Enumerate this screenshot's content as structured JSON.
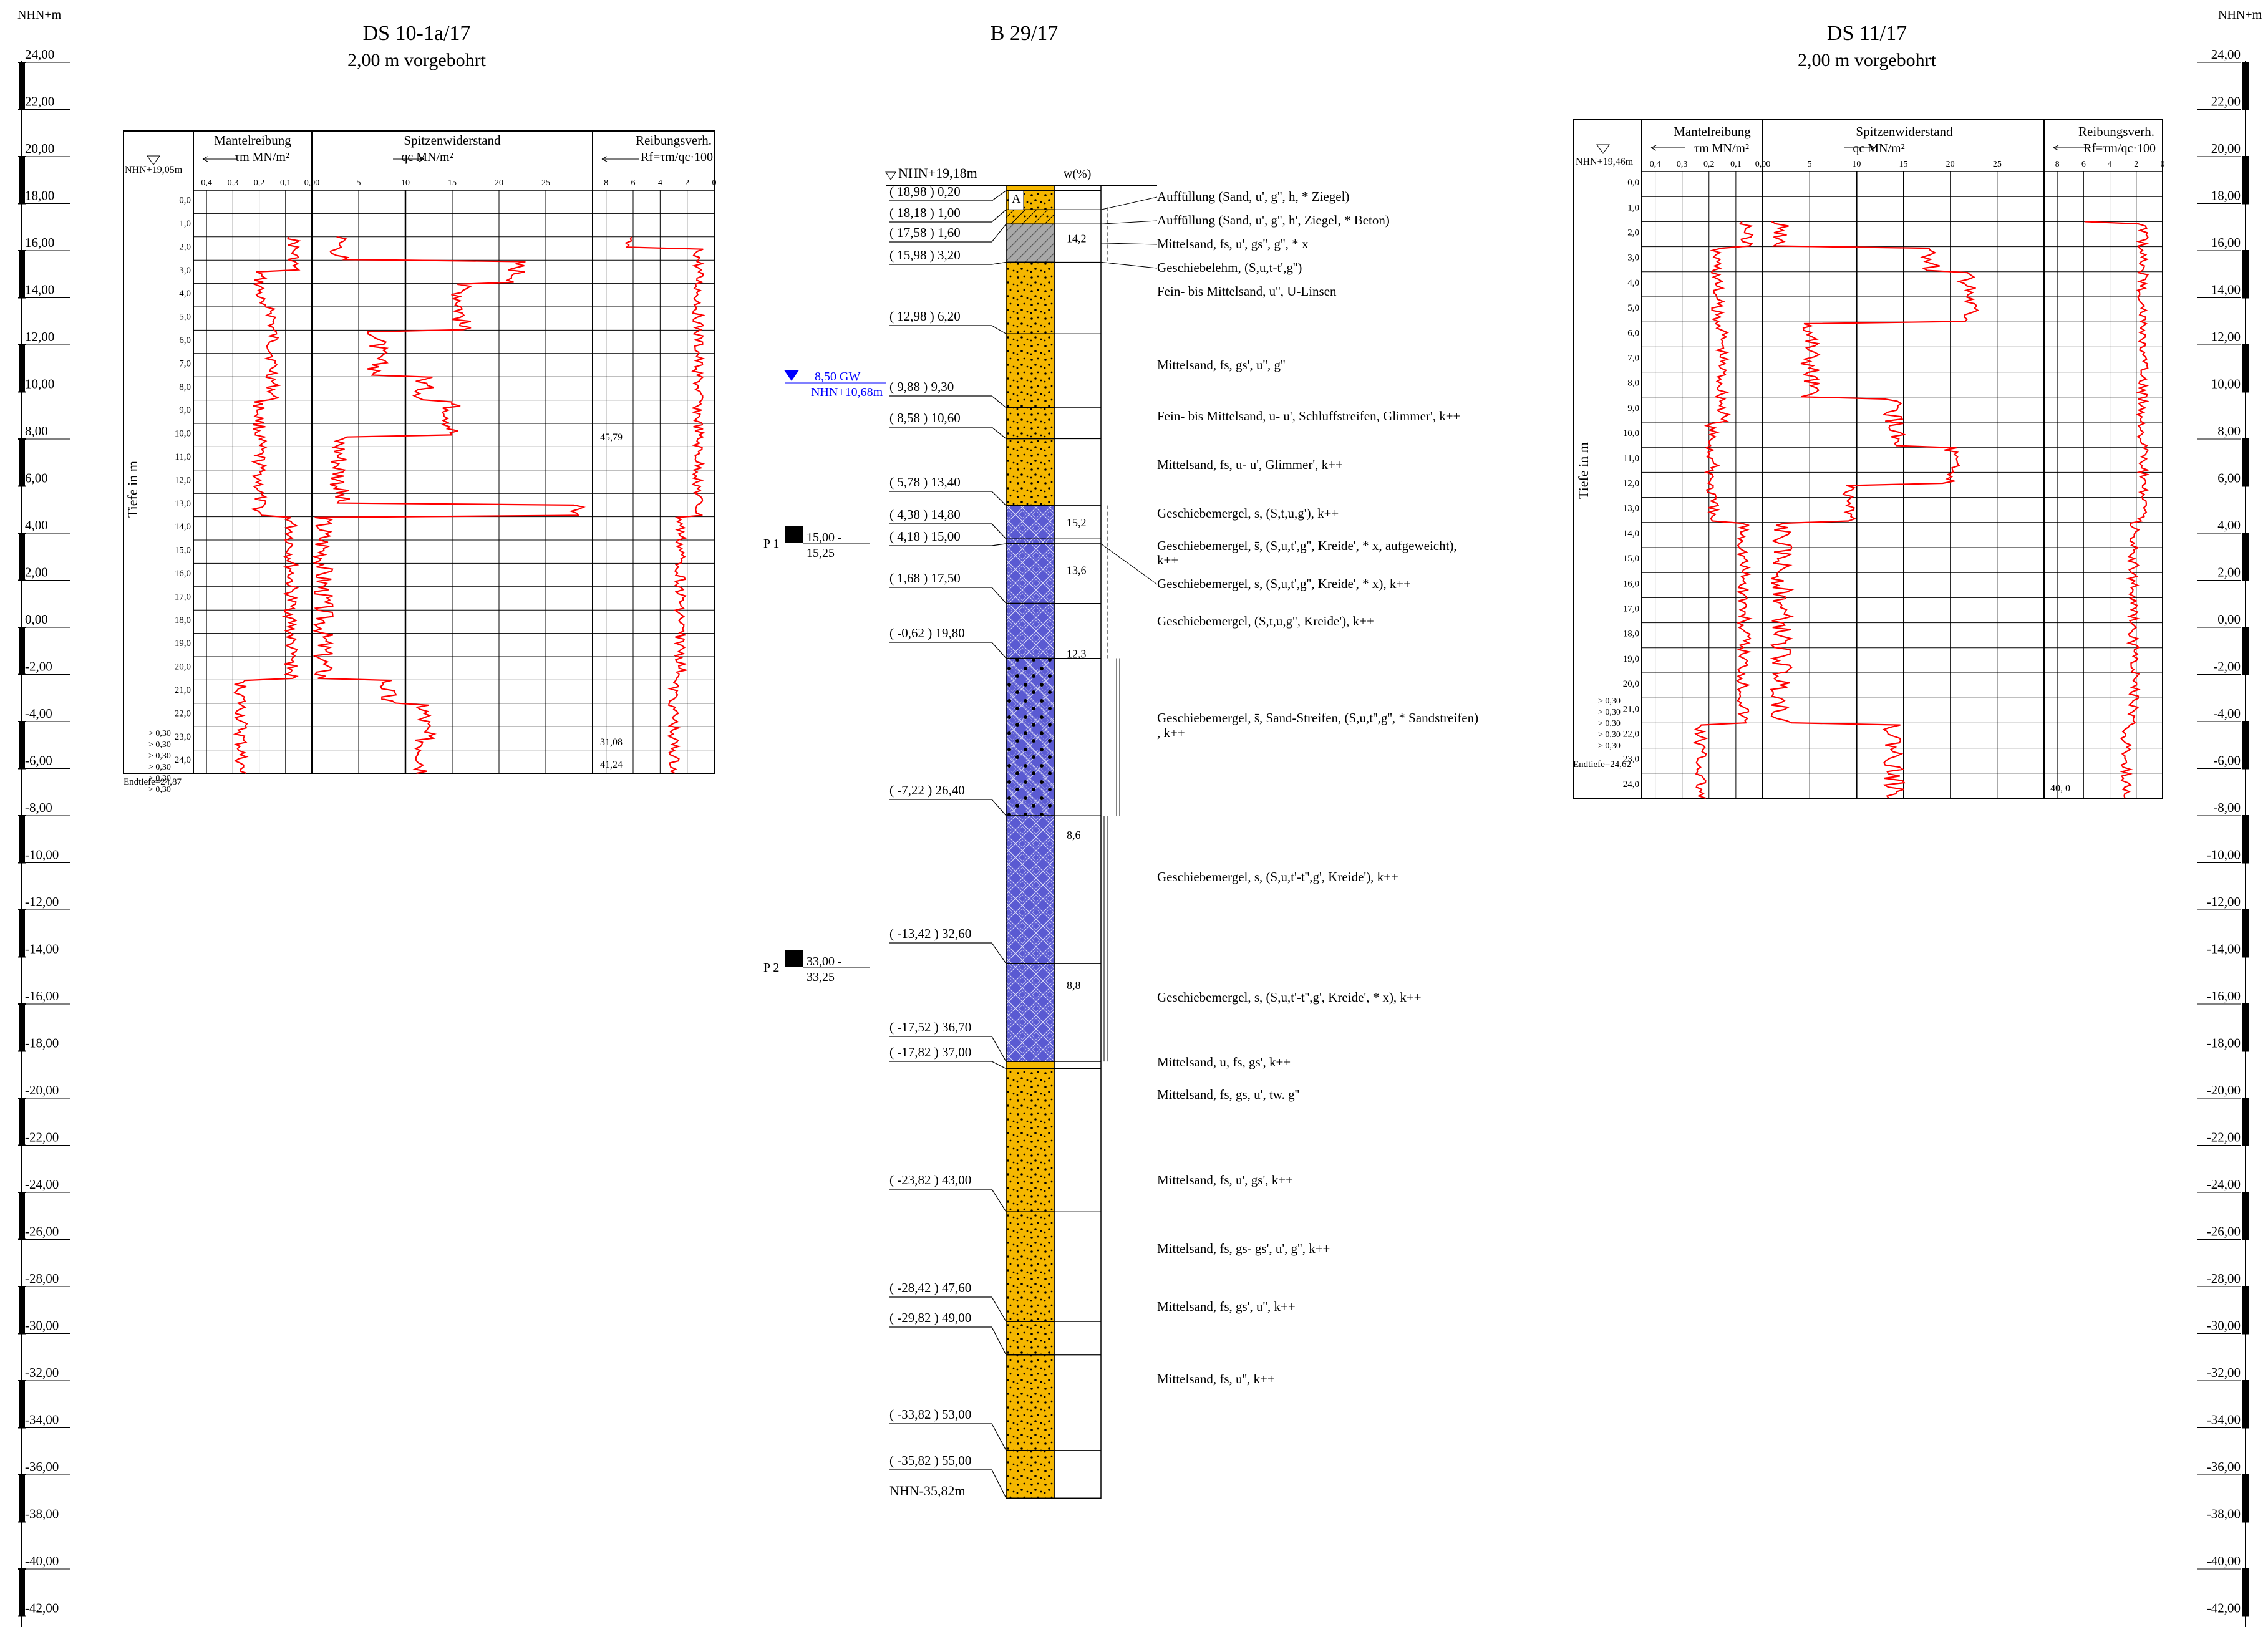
{
  "scale": {
    "header": "NHN+m",
    "labels": [
      "24,00",
      "22,00",
      "20,00",
      "18,00",
      "16,00",
      "14,00",
      "12,00",
      "10,00",
      "8,00",
      "6,00",
      "4,00",
      "2,00",
      "0,00",
      "-2,00",
      "-4,00",
      "-6,00",
      "-8,00",
      "-10,00",
      "-12,00",
      "-14,00",
      "-16,00",
      "-18,00",
      "-20,00",
      "-22,00",
      "-24,00",
      "-26,00",
      "-28,00",
      "-30,00",
      "-32,00",
      "-34,00",
      "-36,00",
      "-38,00",
      "-40,00",
      "-42,00"
    ]
  },
  "ds1": {
    "title": "DS 10-1a/17",
    "subtitle": "2,00 m vorgebohrt",
    "start_level": "NHN+19,05m",
    "depth_label": "Tiefe in m",
    "end_label": "Endtiefe=24,87",
    "depth_ticks": [
      "0,0",
      "1,0",
      "2,0",
      "3,0",
      "4,0",
      "5,0",
      "6,0",
      "7,0",
      "8,0",
      "9,0",
      "10,0",
      "11,0",
      "12,0",
      "13,0",
      "14,0",
      "15,0",
      "16,0",
      "17,0",
      "18,0",
      "19,0",
      "20,0",
      "21,0",
      "22,0",
      "23,0",
      "24,0"
    ],
    "side_notes": [
      "> 0,30",
      "> 0,30",
      "> 0,30",
      "> 0,30",
      "> 0,30",
      "> 0,30"
    ],
    "values": [
      "45,79",
      "31,08",
      "41,24"
    ]
  },
  "ds2": {
    "title": "DS 11/17",
    "subtitle": "2,00 m vorgebohrt",
    "start_level": "NHN+19,46m",
    "depth_label": "Tiefe in m",
    "end_label": "Endtiefe=24,62",
    "depth_ticks": [
      "0,0",
      "1,0",
      "2,0",
      "3,0",
      "4,0",
      "5,0",
      "6,0",
      "7,0",
      "8,0",
      "9,0",
      "10,0",
      "11,0",
      "12,0",
      "13,0",
      "14,0",
      "15,0",
      "16,0",
      "17,0",
      "18,0",
      "19,0",
      "20,0",
      "21,0",
      "22,0",
      "23,0",
      "24,0"
    ],
    "side_notes": [
      "> 0,30",
      "> 0,30",
      "> 0,30",
      "> 0,30",
      "> 0,30"
    ],
    "values": [
      "40, 0"
    ]
  },
  "cpt_headers": {
    "friction": "Mantelreibung",
    "friction_unit": "τm MN/m²",
    "friction_ticks": [
      "0,4",
      "0,3",
      "0,2",
      "0,1",
      "0,00"
    ],
    "tip": "Spitzenwiderstand",
    "tip_unit": "qc MN/m²",
    "tip_ticks": [
      "5",
      "10",
      "15",
      "20",
      "25"
    ],
    "ratio": "Reibungsverh.",
    "ratio_unit": "Rf=τm/qc·100",
    "ratio_ticks": [
      "8",
      "6",
      "4",
      "2",
      "0"
    ]
  },
  "borehole": {
    "title": "B 29/17",
    "top_level": "NHN+19,18m",
    "w_header": "w(%)",
    "bottom_level": "NHN-35,82m",
    "groundwater": {
      "depth": "8,50 GW",
      "level": "NHN+10,68m"
    },
    "samples": [
      {
        "name": "P 1",
        "range1": "15,00 -",
        "range2": "15,25"
      },
      {
        "name": "P 2",
        "range1": "33,00 -",
        "range2": "33,25"
      }
    ],
    "layer_labels": [
      "( 18,98 ) 0,20",
      "( 18,18 ) 1,00",
      "( 17,58 ) 1,60",
      "( 15,98 ) 3,20",
      "( 12,98 ) 6,20",
      "( 9,88 ) 9,30",
      "( 8,58 ) 10,60",
      "( 5,78 ) 13,40",
      "( 4,38 ) 14,80",
      "( 4,18 ) 15,00",
      "( 1,68 ) 17,50",
      "( -0,62 ) 19,80",
      "( -7,22 ) 26,40",
      "( -13,42 ) 32,60",
      "( -17,52 ) 36,70",
      "( -17,82 ) 37,00",
      "( -23,82 ) 43,00",
      "( -28,42 ) 47,60",
      "( -29,82 ) 49,00",
      "( -33,82 ) 53,00",
      "( -35,82 ) 55,00"
    ],
    "marker": "A",
    "w_values": [
      "14,2",
      "15,2",
      "13,6",
      "12,3",
      "8,6",
      "8,8"
    ],
    "descriptions": [
      "Auffüllung (Sand, u', g'', h, * Ziegel)",
      "Auffüllung (Sand, u', g'', h', Ziegel, * Beton)",
      "Mittelsand, fs, u', gs'', g'', * x",
      "Geschiebelehm, (S,u,t-t',g'')",
      "Fein- bis Mittelsand, u'', U-Linsen",
      "Mittelsand, fs, gs', u'', g''",
      "Fein- bis Mittelsand, u- u', Schluffstreifen, Glimmer', k++",
      "Mittelsand, fs, u- u', Glimmer', k++",
      "Geschiebemergel, s, (S,t,u,g'), k++",
      "Geschiebemergel, s̄, (S,u,t',g'', Kreide', * x, aufgeweicht),",
      "k++",
      "Geschiebemergel, s, (S,u,t',g'', Kreide', * x), k++",
      "Geschiebemergel, (S,t,u,g'', Kreide'), k++",
      "Geschiebemergel, s̄, Sand-Streifen, (S,u,t'',g'', * Sandstreifen)",
      ", k++",
      "Geschiebemergel, s, (S,u,t'-t'',g', Kreide'), k++",
      "Geschiebemergel, s, (S,u,t'-t'',g', Kreide', * x), k++",
      "Mittelsand, u, fs, gs', k++",
      "Mittelsand, fs, gs, u', tw. g''",
      "Mittelsand, fs, u', gs', k++",
      "Mittelsand, fs, gs- gs', u', g'', k++",
      "Mittelsand, fs, gs', u'', k++",
      "Mittelsand, fs, u'', k++"
    ]
  },
  "colors": {
    "sand": "#F5B700",
    "marl": "#5A5AD2",
    "fill_grey": "#A8A8A8",
    "curve": "#FF0000",
    "gw": "#0000FF"
  }
}
